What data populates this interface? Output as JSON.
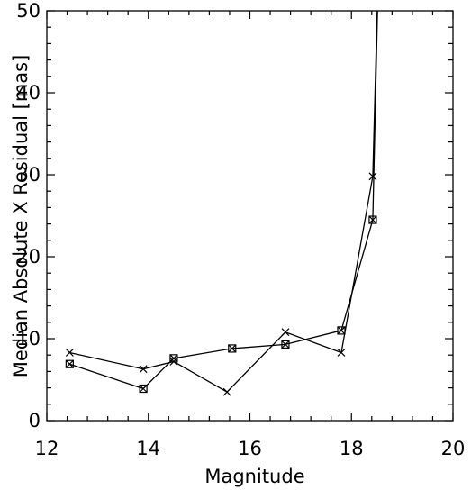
{
  "chart_data": {
    "type": "line",
    "title": "",
    "xlabel": "Magnitude",
    "ylabel": "Median Absolute X Residual [mas]",
    "xlim": [
      12,
      20
    ],
    "ylim": [
      0,
      50
    ],
    "x_ticks": [
      12,
      14,
      16,
      18,
      20
    ],
    "y_ticks": [
      0,
      10,
      20,
      30,
      40,
      50
    ],
    "x_tick_labels": [
      "12",
      "14",
      "16",
      "18",
      "20"
    ],
    "y_tick_labels": [
      "0",
      "10",
      "20",
      "30",
      "40",
      "50"
    ],
    "grid": false,
    "legend": "none",
    "series": [
      {
        "marker": "x",
        "x": [
          12.45,
          13.9,
          14.5,
          15.55,
          16.7,
          17.8,
          18.42,
          18.55
        ],
        "y": [
          8.3,
          6.3,
          7.2,
          3.5,
          10.8,
          8.3,
          29.8,
          60
        ]
      },
      {
        "marker": "boxed-x",
        "x": [
          12.45,
          13.9,
          14.5,
          15.65,
          16.7,
          17.8,
          18.42,
          18.55
        ],
        "y": [
          6.9,
          3.9,
          7.6,
          8.8,
          9.3,
          11.0,
          24.5,
          60
        ]
      }
    ]
  }
}
